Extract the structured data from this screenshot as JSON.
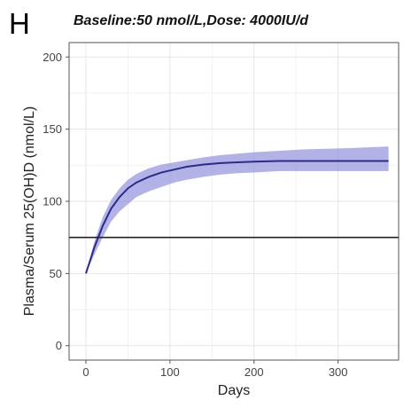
{
  "panel_label": "H",
  "chart_data": {
    "type": "line",
    "title": "Baseline:50 nmol/L,Dose: 4000IU/d",
    "xlabel": "Days",
    "ylabel": "Plasma/Serum 25(OH)D (nmol/L)",
    "xlim": [
      -20,
      372
    ],
    "ylim": [
      -10,
      210
    ],
    "xticks": [
      0,
      100,
      200,
      300
    ],
    "yticks": [
      0,
      50,
      100,
      150,
      200
    ],
    "grid": true,
    "reference_line": {
      "y": 75,
      "color": "#222222"
    },
    "series": [
      {
        "color": "#2b2b8a",
        "band_color": "#8a88d8",
        "x": [
          0,
          10,
          20,
          30,
          40,
          50,
          60,
          75,
          90,
          105,
          120,
          140,
          160,
          180,
          200,
          230,
          260,
          290,
          320,
          360
        ],
        "y": [
          50,
          68,
          83,
          95,
          103,
          109,
          113,
          117,
          120,
          122,
          124,
          125.5,
          126.5,
          127,
          127.5,
          128,
          128,
          128,
          128,
          128
        ],
        "lower": [
          50,
          63,
          75,
          86,
          93,
          98,
          103,
          107,
          110,
          113,
          115,
          117,
          118.5,
          119.5,
          120,
          121,
          121,
          121,
          121,
          121
        ],
        "upper": [
          50,
          72,
          89,
          101,
          109,
          115,
          119,
          123,
          125.5,
          127,
          128.5,
          130.5,
          132,
          133,
          134,
          135,
          136,
          136.5,
          137,
          138
        ]
      }
    ]
  }
}
